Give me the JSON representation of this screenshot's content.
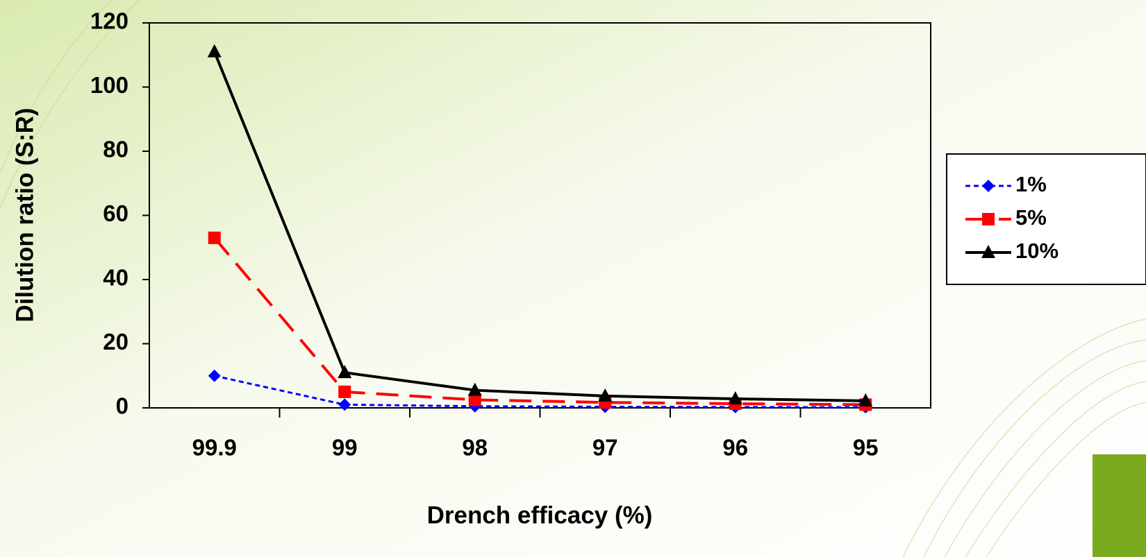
{
  "chart_data": {
    "type": "line",
    "x_label": "Drench efficacy (%)",
    "y_label": "Dilution ratio (S:R)",
    "categories": [
      "99.9",
      "99",
      "98",
      "97",
      "96",
      "95"
    ],
    "series": [
      {
        "name": "1%",
        "color": "#0000ff",
        "marker": "diamond",
        "values": [
          10,
          1,
          0.5,
          0.33,
          0.25,
          0.2
        ]
      },
      {
        "name": "5%",
        "color": "#ff0000",
        "marker": "square",
        "values": [
          53,
          5,
          2.5,
          1.7,
          1.3,
          1
        ]
      },
      {
        "name": "10%",
        "color": "#000000",
        "marker": "triangle",
        "values": [
          111,
          11,
          5.5,
          3.7,
          2.8,
          2.2
        ]
      }
    ],
    "ylim": [
      0,
      120
    ],
    "yticks": [
      0,
      20,
      40,
      60,
      80,
      100,
      120
    ],
    "grid": false,
    "legend": "right"
  }
}
